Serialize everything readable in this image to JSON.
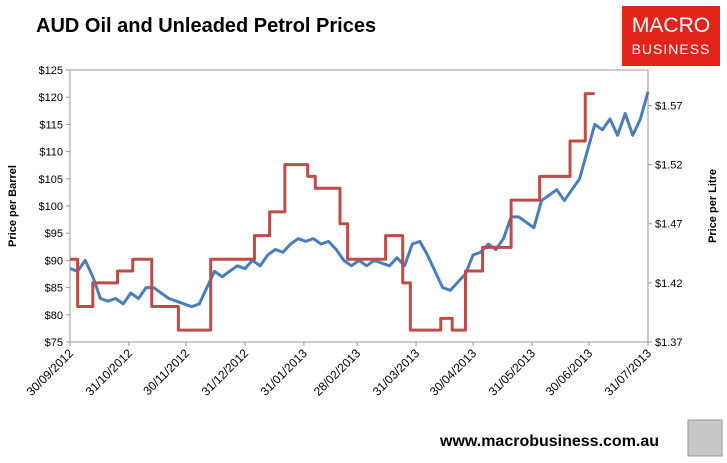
{
  "chart_data": {
    "type": "line",
    "title": "AUD Oil and Unleaded Petrol Prices",
    "logo": [
      "MACRO",
      "BUSINESS"
    ],
    "footer": "www.macrobusiness.com.au",
    "ylabel": "Price per Barrel",
    "y2label": "Price per Litre",
    "xlim": [
      "30/09/2012",
      "31/07/2013"
    ],
    "xticks": [
      "30/09/2012",
      "31/10/2012",
      "30/11/2012",
      "31/12/2012",
      "31/01/2013",
      "28/02/2013",
      "31/03/2013",
      "30/04/2013",
      "31/05/2013",
      "30/06/2013",
      "31/07/2013"
    ],
    "ylim": [
      75,
      125
    ],
    "yticks": [
      {
        "value": 75,
        "label": "$75"
      },
      {
        "value": 80,
        "label": "$80"
      },
      {
        "value": 85,
        "label": "$85"
      },
      {
        "value": 90,
        "label": "$90"
      },
      {
        "value": 95,
        "label": "$95"
      },
      {
        "value": 100,
        "label": "$100"
      },
      {
        "value": 105,
        "label": "$105"
      },
      {
        "value": 110,
        "label": "$110"
      },
      {
        "value": 115,
        "label": "$115"
      },
      {
        "value": 120,
        "label": "$120"
      },
      {
        "value": 125,
        "label": "$125"
      }
    ],
    "y2lim": [
      1.37,
      1.6
    ],
    "y2ticks": [
      {
        "value": 1.37,
        "label": "$1.37"
      },
      {
        "value": 1.42,
        "label": "$1.42"
      },
      {
        "value": 1.47,
        "label": "$1.47"
      },
      {
        "value": 1.52,
        "label": "$1.52"
      },
      {
        "value": 1.57,
        "label": "$1.57"
      }
    ],
    "series": [
      {
        "color": "#4a7ebb",
        "axis": "y",
        "x": [
          "30/09/2012",
          "04/10/2012",
          "08/10/2012",
          "12/10/2012",
          "16/10/2012",
          "20/10/2012",
          "24/10/2012",
          "28/10/2012",
          "01/11/2012",
          "05/11/2012",
          "09/11/2012",
          "13/11/2012",
          "17/11/2012",
          "21/11/2012",
          "25/11/2012",
          "29/11/2012",
          "03/12/2012",
          "07/12/2012",
          "11/12/2012",
          "15/12/2012",
          "19/12/2012",
          "23/12/2012",
          "27/12/2012",
          "31/12/2012",
          "04/01/2013",
          "08/01/2013",
          "12/01/2013",
          "16/01/2013",
          "20/01/2013",
          "24/01/2013",
          "28/01/2013",
          "01/02/2013",
          "05/02/2013",
          "09/02/2013",
          "13/02/2013",
          "17/02/2013",
          "21/02/2013",
          "25/02/2013",
          "01/03/2013",
          "05/03/2013",
          "09/03/2013",
          "13/03/2013",
          "17/03/2013",
          "21/03/2013",
          "25/03/2013",
          "29/03/2013",
          "02/04/2013",
          "06/04/2013",
          "10/04/2013",
          "14/04/2013",
          "18/04/2013",
          "22/04/2013",
          "26/04/2013",
          "30/04/2013",
          "04/05/2013",
          "08/05/2013",
          "12/05/2013",
          "16/05/2013",
          "20/05/2013",
          "24/05/2013",
          "28/05/2013",
          "01/06/2013",
          "05/06/2013",
          "09/06/2013",
          "13/06/2013",
          "17/06/2013",
          "21/06/2013",
          "25/06/2013",
          "29/06/2013",
          "03/07/2013",
          "07/07/2013",
          "11/07/2013",
          "15/07/2013",
          "19/07/2013",
          "23/07/2013",
          "27/07/2013",
          "31/07/2013"
        ],
        "values": [
          88.5,
          88,
          90,
          87,
          83,
          82.5,
          83,
          82,
          84,
          83,
          85,
          85,
          84,
          83,
          82.5,
          82,
          81.5,
          82,
          85,
          88,
          87,
          88,
          89,
          88.5,
          90,
          89,
          91,
          92,
          91.5,
          93,
          94,
          93.5,
          94,
          93,
          93.5,
          92,
          90,
          89,
          90,
          89,
          90,
          89.5,
          89,
          90.5,
          89,
          93,
          93.5,
          91,
          88,
          85,
          84.5,
          86,
          87.5,
          91,
          91.5,
          93,
          92,
          94,
          98,
          98,
          97,
          96,
          101,
          102,
          103,
          101,
          103,
          105,
          110,
          115,
          114,
          116,
          113,
          117,
          113,
          116,
          121
        ]
      },
      {
        "color": "#be4b48",
        "axis": "y2",
        "step": true,
        "x": [
          "30/09/2012",
          "04/10/2012",
          "12/10/2012",
          "25/10/2012",
          "02/11/2012",
          "12/11/2012",
          "26/11/2012",
          "13/12/2012",
          "05/01/2013",
          "13/01/2013",
          "21/01/2013",
          "02/02/2013",
          "06/02/2013",
          "19/02/2013",
          "23/02/2013",
          "15/03/2013",
          "24/03/2013",
          "28/03/2013",
          "13/04/2013",
          "19/04/2013",
          "26/04/2013",
          "05/05/2013",
          "20/05/2013",
          "04/06/2013",
          "20/06/2013",
          "28/06/2013",
          "03/07/2013"
        ],
        "values": [
          1.44,
          1.4,
          1.42,
          1.43,
          1.44,
          1.4,
          1.38,
          1.44,
          1.46,
          1.48,
          1.52,
          1.51,
          1.5,
          1.47,
          1.44,
          1.46,
          1.42,
          1.38,
          1.39,
          1.38,
          1.43,
          1.45,
          1.49,
          1.51,
          1.54,
          1.58,
          1.58
        ]
      }
    ]
  }
}
